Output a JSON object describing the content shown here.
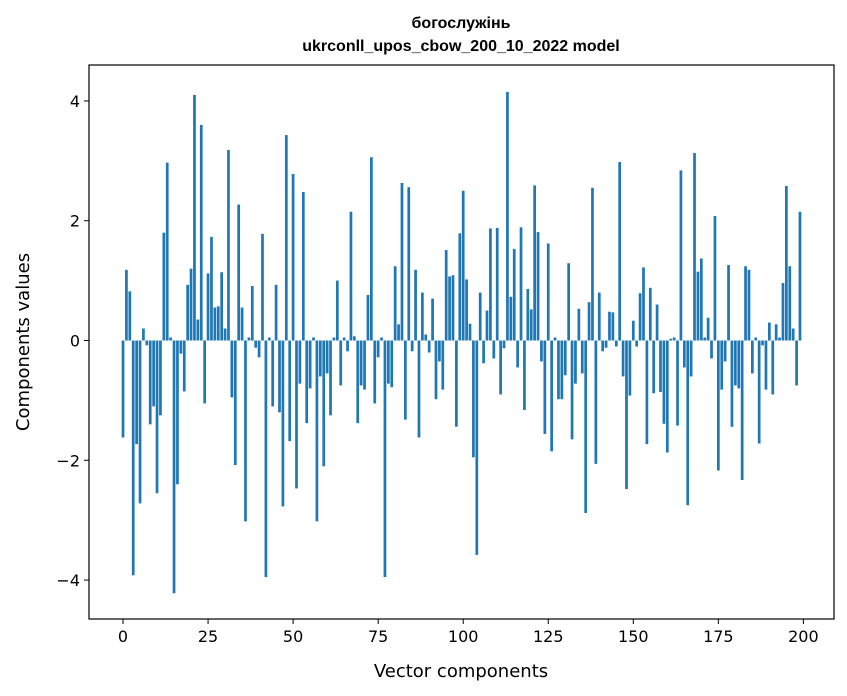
{
  "chart_data": {
    "type": "bar",
    "title": "богослужінь",
    "subtitle": "ukrconll_upos_cbow_200_10_2022 model",
    "xlabel": "Vector components",
    "ylabel": "Components values",
    "xlim": [
      -10,
      209
    ],
    "ylim": [
      -4.65,
      4.6
    ],
    "xticks": [
      0,
      25,
      50,
      75,
      100,
      125,
      150,
      175,
      200
    ],
    "xtick_labels": [
      "0",
      "25",
      "50",
      "75",
      "100",
      "125",
      "150",
      "175",
      "200"
    ],
    "yticks": [
      -4,
      -2,
      0,
      2,
      4
    ],
    "ytick_labels": [
      "−4",
      "−2",
      "0",
      "2",
      "4"
    ],
    "grid": false,
    "bar_color": "#1f77b4",
    "x": [
      0,
      1,
      2,
      3,
      4,
      5,
      6,
      7,
      8,
      9,
      10,
      11,
      12,
      13,
      14,
      15,
      16,
      17,
      18,
      19,
      20,
      21,
      22,
      23,
      24,
      25,
      26,
      27,
      28,
      29,
      30,
      31,
      32,
      33,
      34,
      35,
      36,
      37,
      38,
      39,
      40,
      41,
      42,
      43,
      44,
      45,
      46,
      47,
      48,
      49,
      50,
      51,
      52,
      53,
      54,
      55,
      56,
      57,
      58,
      59,
      60,
      61,
      62,
      63,
      64,
      65,
      66,
      67,
      68,
      69,
      70,
      71,
      72,
      73,
      74,
      75,
      76,
      77,
      78,
      79,
      80,
      81,
      82,
      83,
      84,
      85,
      86,
      87,
      88,
      89,
      90,
      91,
      92,
      93,
      94,
      95,
      96,
      97,
      98,
      99,
      100,
      101,
      102,
      103,
      104,
      105,
      106,
      107,
      108,
      109,
      110,
      111,
      112,
      113,
      114,
      115,
      116,
      117,
      118,
      119,
      120,
      121,
      122,
      123,
      124,
      125,
      126,
      127,
      128,
      129,
      130,
      131,
      132,
      133,
      134,
      135,
      136,
      137,
      138,
      139,
      140,
      141,
      142,
      143,
      144,
      145,
      146,
      147,
      148,
      149,
      150,
      151,
      152,
      153,
      154,
      155,
      156,
      157,
      158,
      159,
      160,
      161,
      162,
      163,
      164,
      165,
      166,
      167,
      168,
      169,
      170,
      171,
      172,
      173,
      174,
      175,
      176,
      177,
      178,
      179,
      180,
      181,
      182,
      183,
      184,
      185,
      186,
      187,
      188,
      189,
      190,
      191,
      192,
      193,
      194,
      195,
      196,
      197,
      198,
      199
    ],
    "values": [
      -1.62,
      1.18,
      0.82,
      -3.92,
      -1.73,
      -2.72,
      0.2,
      -0.08,
      -1.4,
      -1.1,
      -2.55,
      -1.25,
      1.8,
      2.97,
      0.05,
      -4.22,
      -2.4,
      -0.22,
      -0.85,
      0.93,
      1.2,
      4.1,
      0.35,
      3.6,
      -1.05,
      1.12,
      1.73,
      0.55,
      0.57,
      1.14,
      0.2,
      3.18,
      -0.95,
      -2.08,
      2.27,
      0.55,
      -3.02,
      0.05,
      0.91,
      -0.12,
      -0.28,
      1.78,
      -3.95,
      0.05,
      -1.1,
      0.93,
      -1.2,
      -2.77,
      3.43,
      -1.68,
      2.78,
      -2.47,
      -0.72,
      2.48,
      -1.38,
      -0.8,
      0.05,
      -3.02,
      -0.6,
      -2.1,
      -0.55,
      -1.25,
      0.05,
      1.0,
      -0.75,
      0.05,
      -0.18,
      2.15,
      0.07,
      -1.38,
      -0.75,
      -0.82,
      0.76,
      3.06,
      -1.05,
      -0.28,
      0.05,
      -3.95,
      -0.72,
      -0.78,
      1.24,
      0.27,
      2.63,
      -1.32,
      2.56,
      -0.18,
      1.18,
      -1.62,
      0.8,
      0.1,
      -0.2,
      0.7,
      -0.98,
      -0.35,
      -0.82,
      1.51,
      1.07,
      1.09,
      -1.44,
      1.79,
      2.5,
      1.02,
      0.28,
      -1.95,
      -3.58,
      0.8,
      -0.38,
      0.5,
      1.87,
      -0.3,
      1.88,
      -0.9,
      -0.13,
      4.15,
      0.73,
      1.53,
      -0.45,
      1.89,
      -1.16,
      0.86,
      0.52,
      2.59,
      1.81,
      -0.35,
      -1.56,
      1.62,
      -1.85,
      0.05,
      -0.98,
      -0.98,
      -0.58,
      1.29,
      -1.65,
      -0.72,
      0.53,
      -0.55,
      -2.88,
      0.64,
      2.55,
      -2.06,
      0.8,
      -0.18,
      -0.12,
      0.48,
      0.47,
      -0.1,
      2.98,
      -0.6,
      -2.48,
      -0.92,
      0.33,
      -0.1,
      0.79,
      1.22,
      -1.73,
      0.88,
      -0.88,
      0.6,
      -0.86,
      -1.39,
      -1.87,
      0.03,
      0.05,
      -1.42,
      2.84,
      -0.45,
      -2.75,
      -0.6,
      3.13,
      1.15,
      1.37,
      0.05,
      0.38,
      -0.3,
      2.08,
      -2.17,
      -0.82,
      -0.35,
      1.26,
      -1.44,
      -0.75,
      -0.8,
      -2.33,
      1.24,
      1.18,
      -0.55,
      0.05,
      -1.72,
      -0.08,
      -0.82,
      0.3,
      -0.9,
      0.27,
      0.05,
      0.96,
      2.58,
      1.24,
      0.2,
      -0.75,
      2.15
    ]
  }
}
